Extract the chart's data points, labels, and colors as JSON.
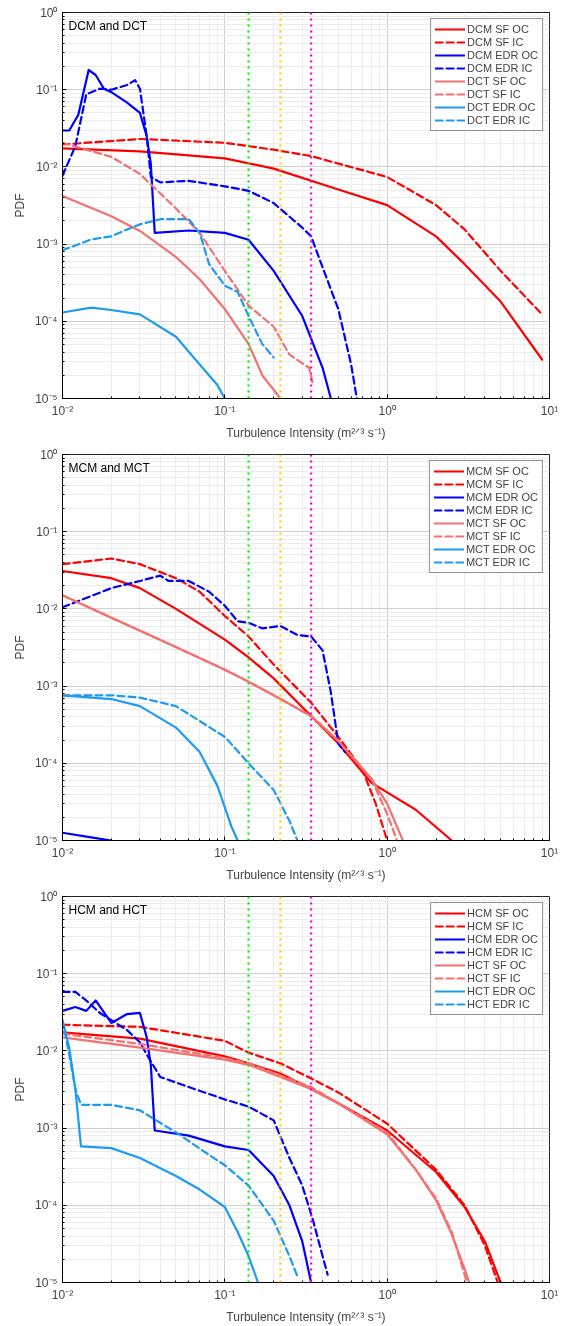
{
  "chart_data": [
    {
      "type": "line",
      "title": "DCM and DCT",
      "xlabel": "Turbulence Intensity (m²ᐟ³ s⁻¹)",
      "ylabel": "PDF",
      "log": "xy",
      "grid": true,
      "legend": "top right",
      "xlim": [
        0.01,
        10
      ],
      "ylim": [
        1e-05,
        1
      ],
      "xticks": [
        {
          "value": 0.01,
          "label": "10⁻²"
        },
        {
          "value": 0.1,
          "label": "10⁻¹"
        },
        {
          "value": 1,
          "label": "10⁰"
        },
        {
          "value": 10,
          "label": "10¹"
        }
      ],
      "yticks": [
        {
          "value": 1e-05,
          "label": "10⁻⁵"
        },
        {
          "value": 0.0001,
          "label": "10⁻⁴"
        },
        {
          "value": 0.001,
          "label": "10⁻³"
        },
        {
          "value": 0.01,
          "label": "10⁻²"
        },
        {
          "value": 0.1,
          "label": "10⁻¹"
        },
        {
          "value": 1,
          "label": "10⁰"
        }
      ],
      "ref_lines": [
        {
          "axis": "x",
          "value": 0.14,
          "color": "#00ee00",
          "line_style": "dotted"
        },
        {
          "axis": "x",
          "value": 0.22,
          "color": "#ffcc00",
          "line_style": "dotted"
        },
        {
          "axis": "x",
          "value": 0.34,
          "color": "#ff00cc",
          "line_style": "dotted"
        }
      ],
      "series": [
        {
          "name": "DCM SF OC",
          "color": "#ff0000",
          "line_style": "solid",
          "x": [
            0.01,
            0.03,
            0.1,
            0.2,
            0.5,
            1,
            2,
            3,
            5,
            9
          ],
          "values": [
            0.0174,
            0.0159,
            0.0129,
            0.0095,
            0.0051,
            0.0032,
            0.00126,
            0.00055,
            0.00018,
            3.2e-05
          ]
        },
        {
          "name": "DCM SF IC",
          "color": "#ff0000",
          "line_style": "dashed",
          "x": [
            0.01,
            0.03,
            0.1,
            0.2,
            0.34,
            1,
            2,
            3,
            5,
            9
          ],
          "values": [
            0.0195,
            0.023,
            0.0205,
            0.0167,
            0.0138,
            0.0074,
            0.0032,
            0.00155,
            0.00045,
            0.000123
          ]
        },
        {
          "name": "DCM EDR OC",
          "color": "#0000ff",
          "line_style": "solid",
          "x": [
            0.01,
            0.011,
            0.0125,
            0.0145,
            0.016,
            0.018,
            0.02,
            0.025,
            0.03,
            0.033,
            0.035,
            0.037,
            0.06,
            0.1,
            0.14,
            0.2,
            0.3,
            0.4,
            0.45
          ],
          "values": [
            0.0296,
            0.0296,
            0.047,
            0.18,
            0.155,
            0.103,
            0.093,
            0.068,
            0.05,
            0.025,
            0.011,
            0.0014,
            0.0015,
            0.0014,
            0.00114,
            0.00045,
            0.000117,
            2.5e-05,
            1e-05
          ]
        },
        {
          "name": "DCM EDR IC",
          "color": "#0000ff",
          "line_style": "dashed",
          "x": [
            0.01,
            0.012,
            0.014,
            0.017,
            0.02,
            0.025,
            0.028,
            0.03,
            0.033,
            0.035,
            0.04,
            0.06,
            0.1,
            0.14,
            0.2,
            0.3,
            0.34,
            0.4,
            0.5,
            0.6,
            0.65
          ],
          "values": [
            0.0077,
            0.0186,
            0.087,
            0.103,
            0.1,
            0.115,
            0.133,
            0.103,
            0.025,
            0.0074,
            0.0063,
            0.0066,
            0.0056,
            0.0049,
            0.0034,
            0.00163,
            0.00126,
            0.0005,
            0.000144,
            2.75e-05,
            1e-05
          ]
        },
        {
          "name": "DCT SF OC",
          "color": "#f57070",
          "line_style": "solid",
          "x": [
            0.01,
            0.02,
            0.03,
            0.05,
            0.07,
            0.1,
            0.14,
            0.17,
            0.22
          ],
          "values": [
            0.0042,
            0.0023,
            0.00148,
            0.00068,
            0.00035,
            0.000144,
            5.1e-05,
            2e-05,
            1e-05
          ]
        },
        {
          "name": "DCT SF IC",
          "color": "#f57070",
          "line_style": "dashed",
          "x": [
            0.01,
            0.02,
            0.03,
            0.05,
            0.07,
            0.1,
            0.14,
            0.2,
            0.25,
            0.33,
            0.35
          ],
          "values": [
            0.0205,
            0.0135,
            0.0081,
            0.0029,
            0.0014,
            0.00045,
            0.00016,
            8.5e-05,
            3.7e-05,
            2.5e-05,
            1.5e-05
          ]
        },
        {
          "name": "DCT EDR OC",
          "color": "#1e9bf0",
          "line_style": "solid",
          "x": [
            0.01,
            0.015,
            0.02,
            0.03,
            0.05,
            0.07,
            0.09,
            0.1
          ],
          "values": [
            0.00013,
            0.00015,
            0.00014,
            0.000123,
            6.3e-05,
            2.75e-05,
            1.5e-05,
            1e-05
          ]
        },
        {
          "name": "DCT EDR IC",
          "color": "#1e9bf0",
          "line_style": "dashed",
          "x": [
            0.01,
            0.015,
            0.02,
            0.025,
            0.03,
            0.04,
            0.06,
            0.07,
            0.08,
            0.1,
            0.12,
            0.14,
            0.17,
            0.2
          ],
          "values": [
            0.00083,
            0.00115,
            0.00126,
            0.00155,
            0.0018,
            0.0021,
            0.0021,
            0.0014,
            0.00055,
            0.00029,
            0.00024,
            0.000117,
            5.1e-05,
            3.4e-05
          ]
        }
      ]
    },
    {
      "type": "line",
      "title": "MCM and MCT",
      "xlabel": "Turbulence Intensity (m²ᐟ³ s⁻¹)",
      "ylabel": "PDF",
      "log": "xy",
      "grid": true,
      "legend": "top right",
      "xlim": [
        0.01,
        10
      ],
      "ylim": [
        1e-05,
        1
      ],
      "xticks": [
        {
          "value": 0.01,
          "label": "10⁻²"
        },
        {
          "value": 0.1,
          "label": "10⁻¹"
        },
        {
          "value": 1,
          "label": "10⁰"
        },
        {
          "value": 10,
          "label": "10¹"
        }
      ],
      "yticks": [
        {
          "value": 1e-05,
          "label": "10⁻⁵"
        },
        {
          "value": 0.0001,
          "label": "10⁻⁴"
        },
        {
          "value": 0.001,
          "label": "10⁻³"
        },
        {
          "value": 0.01,
          "label": "10⁻²"
        },
        {
          "value": 0.1,
          "label": "10⁻¹"
        },
        {
          "value": 1,
          "label": "10⁰"
        }
      ],
      "ref_lines": [
        {
          "axis": "x",
          "value": 0.14,
          "color": "#00ee00",
          "line_style": "dotted"
        },
        {
          "axis": "x",
          "value": 0.22,
          "color": "#ffcc00",
          "line_style": "dotted"
        },
        {
          "axis": "x",
          "value": 0.34,
          "color": "#ff00cc",
          "line_style": "dotted"
        }
      ],
      "series": [
        {
          "name": "MCM SF OC",
          "color": "#ff0000",
          "line_style": "solid",
          "x": [
            0.01,
            0.02,
            0.03,
            0.05,
            0.1,
            0.14,
            0.2,
            0.34,
            0.5,
            0.8,
            1,
            1.5,
            2.5
          ],
          "values": [
            0.031,
            0.025,
            0.0186,
            0.01,
            0.004,
            0.00235,
            0.00126,
            0.00041,
            0.00018,
            5.6e-05,
            4.2e-05,
            2.5e-05,
            1e-05
          ]
        },
        {
          "name": "MCM SF IC",
          "color": "#ff0000",
          "line_style": "dashed",
          "x": [
            0.01,
            0.02,
            0.03,
            0.05,
            0.07,
            0.1,
            0.14,
            0.2,
            0.34,
            0.5,
            0.7,
            0.85,
            1
          ],
          "values": [
            0.038,
            0.045,
            0.038,
            0.025,
            0.0167,
            0.0081,
            0.0044,
            0.0019,
            0.00061,
            0.00022,
            8.5e-05,
            3e-05,
            1e-05
          ]
        },
        {
          "name": "MCM EDR OC",
          "color": "#0000ff",
          "line_style": "solid",
          "x": [
            0.01,
            0.015,
            0.02
          ],
          "values": [
            1.26e-05,
            1.1e-05,
            1e-05
          ]
        },
        {
          "name": "MCM EDR IC",
          "color": "#0000ff",
          "line_style": "dashed",
          "x": [
            0.01,
            0.02,
            0.03,
            0.04,
            0.045,
            0.06,
            0.08,
            0.1,
            0.12,
            0.14,
            0.17,
            0.22,
            0.28,
            0.34,
            0.4,
            0.45,
            0.5,
            0.55
          ],
          "values": [
            0.0105,
            0.0186,
            0.023,
            0.027,
            0.023,
            0.023,
            0.0167,
            0.011,
            0.0069,
            0.0066,
            0.0056,
            0.006,
            0.0046,
            0.0044,
            0.0029,
            0.00083,
            0.00018,
            0.00014
          ]
        },
        {
          "name": "MCT SF OC",
          "color": "#f57070",
          "line_style": "solid",
          "x": [
            0.01,
            0.02,
            0.05,
            0.1,
            0.14,
            0.2,
            0.34,
            0.5,
            0.8,
            1,
            1.25
          ],
          "values": [
            0.015,
            0.0077,
            0.0032,
            0.00163,
            0.00114,
            0.00076,
            0.00041,
            0.000195,
            6.3e-05,
            3e-05,
            1e-05
          ]
        },
        {
          "name": "MCT SF IC",
          "color": "#f57070",
          "line_style": "dashed",
          "x": [
            0.01,
            0.02,
            0.05,
            0.1,
            0.14,
            0.2,
            0.34,
            0.5,
            0.8,
            1,
            1.15
          ],
          "values": [
            0.015,
            0.0077,
            0.0032,
            0.00163,
            0.00114,
            0.00076,
            0.00041,
            0.000195,
            6.3e-05,
            2.2e-05,
            1e-05
          ]
        },
        {
          "name": "MCT EDR OC",
          "color": "#1e9bf0",
          "line_style": "solid",
          "x": [
            0.01,
            0.02,
            0.03,
            0.05,
            0.07,
            0.09,
            0.11,
            0.12
          ],
          "values": [
            0.00076,
            0.00068,
            0.00055,
            0.00029,
            0.00014,
            5.1e-05,
            1.5e-05,
            1e-05
          ]
        },
        {
          "name": "MCT EDR IC",
          "color": "#1e9bf0",
          "line_style": "dashed",
          "x": [
            0.01,
            0.02,
            0.03,
            0.05,
            0.1,
            0.14,
            0.2,
            0.25,
            0.28
          ],
          "values": [
            0.00076,
            0.00076,
            0.00071,
            0.00055,
            0.00022,
            0.0001,
            4.5e-05,
            1.8e-05,
            1e-05
          ]
        }
      ]
    },
    {
      "type": "line",
      "title": "HCM and HCT",
      "xlabel": "Turbulence Intensity (m²ᐟ³ s⁻¹)",
      "ylabel": "PDF",
      "log": "xy",
      "grid": true,
      "legend": "top right",
      "xlim": [
        0.01,
        10
      ],
      "ylim": [
        1e-05,
        1
      ],
      "xticks": [
        {
          "value": 0.01,
          "label": "10⁻²"
        },
        {
          "value": 0.1,
          "label": "10⁻¹"
        },
        {
          "value": 1,
          "label": "10⁰"
        },
        {
          "value": 10,
          "label": "10¹"
        }
      ],
      "yticks": [
        {
          "value": 1e-05,
          "label": "10⁻⁵"
        },
        {
          "value": 0.0001,
          "label": "10⁻⁴"
        },
        {
          "value": 0.001,
          "label": "10⁻³"
        },
        {
          "value": 0.01,
          "label": "10⁻²"
        },
        {
          "value": 0.1,
          "label": "10⁻¹"
        },
        {
          "value": 1,
          "label": "10⁰"
        }
      ],
      "ref_lines": [
        {
          "axis": "x",
          "value": 0.14,
          "color": "#00ee00",
          "line_style": "dotted"
        },
        {
          "axis": "x",
          "value": 0.22,
          "color": "#ffcc00",
          "line_style": "dotted"
        },
        {
          "axis": "x",
          "value": 0.34,
          "color": "#ff00cc",
          "line_style": "dotted"
        }
      ],
      "series": [
        {
          "name": "HCM SF OC",
          "color": "#ff0000",
          "line_style": "solid",
          "x": [
            0.01,
            0.03,
            0.1,
            0.14,
            0.22,
            0.34,
            0.5,
            1,
            2,
            3,
            4,
            5
          ],
          "values": [
            0.0174,
            0.0144,
            0.0085,
            0.0069,
            0.0051,
            0.0032,
            0.0021,
            0.00093,
            0.00027,
            9.5e-05,
            3.4e-05,
            1e-05
          ]
        },
        {
          "name": "HCM SF IC",
          "color": "#ff0000",
          "line_style": "dashed",
          "x": [
            0.01,
            0.03,
            0.1,
            0.14,
            0.22,
            0.34,
            0.5,
            1,
            2,
            3,
            4,
            4.8
          ],
          "values": [
            0.0218,
            0.0205,
            0.0135,
            0.0095,
            0.0069,
            0.0044,
            0.0029,
            0.00114,
            0.00029,
            0.0001,
            3e-05,
            1e-05
          ]
        },
        {
          "name": "HCM EDR OC",
          "color": "#0000ff",
          "line_style": "solid",
          "x": [
            0.01,
            0.012,
            0.014,
            0.016,
            0.02,
            0.025,
            0.03,
            0.033,
            0.035,
            0.037,
            0.06,
            0.1,
            0.14,
            0.2,
            0.25,
            0.3,
            0.34
          ],
          "values": [
            0.033,
            0.037,
            0.033,
            0.045,
            0.023,
            0.03,
            0.031,
            0.015,
            0.0066,
            0.00093,
            0.0008,
            0.00058,
            0.00052,
            0.00024,
            0.0001,
            3.4e-05,
            1e-05
          ]
        },
        {
          "name": "HCM EDR IC",
          "color": "#0000ff",
          "line_style": "dashed",
          "x": [
            0.01,
            0.012,
            0.014,
            0.017,
            0.02,
            0.025,
            0.03,
            0.034,
            0.04,
            0.06,
            0.1,
            0.14,
            0.2,
            0.25,
            0.3,
            0.35,
            0.4,
            0.43
          ],
          "values": [
            0.058,
            0.058,
            0.045,
            0.031,
            0.025,
            0.0186,
            0.0129,
            0.0081,
            0.0046,
            0.0034,
            0.00235,
            0.0019,
            0.00126,
            0.00041,
            0.00018,
            6.3e-05,
            2.2e-05,
            1.26e-05
          ]
        },
        {
          "name": "HCT SF OC",
          "color": "#f57070",
          "line_style": "solid",
          "x": [
            0.01,
            0.03,
            0.1,
            0.14,
            0.22,
            0.34,
            0.5,
            1,
            1.5,
            2,
            2.5,
            3,
            3.2
          ],
          "values": [
            0.015,
            0.011,
            0.0077,
            0.0066,
            0.0046,
            0.0032,
            0.0021,
            0.00083,
            0.00029,
            0.000117,
            4.2e-05,
            1.5e-05,
            1e-05
          ]
        },
        {
          "name": "HCT SF IC",
          "color": "#f57070",
          "line_style": "dashed",
          "x": [
            0.01,
            0.03,
            0.1,
            0.14,
            0.22,
            0.34,
            0.5,
            1,
            1.5,
            2,
            2.5,
            3.1
          ],
          "values": [
            0.0167,
            0.0123,
            0.0081,
            0.0069,
            0.0048,
            0.0034,
            0.0021,
            0.00088,
            0.00029,
            0.000123,
            4.5e-05,
            1e-05
          ]
        },
        {
          "name": "HCT EDR OC",
          "color": "#1e9bf0",
          "line_style": "solid",
          "x": [
            0.01,
            0.011,
            0.012,
            0.013,
            0.02,
            0.03,
            0.05,
            0.07,
            0.1,
            0.12,
            0.14,
            0.16
          ],
          "values": [
            0.025,
            0.011,
            0.0032,
            0.00058,
            0.00055,
            0.00041,
            0.00024,
            0.00016,
            9.5e-05,
            4.5e-05,
            2.2e-05,
            1e-05
          ]
        },
        {
          "name": "HCT EDR IC",
          "color": "#1e9bf0",
          "line_style": "dashed",
          "x": [
            0.01,
            0.011,
            0.012,
            0.013,
            0.02,
            0.03,
            0.05,
            0.08,
            0.1,
            0.14,
            0.2,
            0.25,
            0.28
          ],
          "values": [
            0.025,
            0.009,
            0.0032,
            0.002,
            0.002,
            0.0017,
            0.00088,
            0.00045,
            0.00033,
            0.00018,
            6.3e-05,
            2.2e-05,
            1.2e-05
          ]
        }
      ]
    }
  ]
}
